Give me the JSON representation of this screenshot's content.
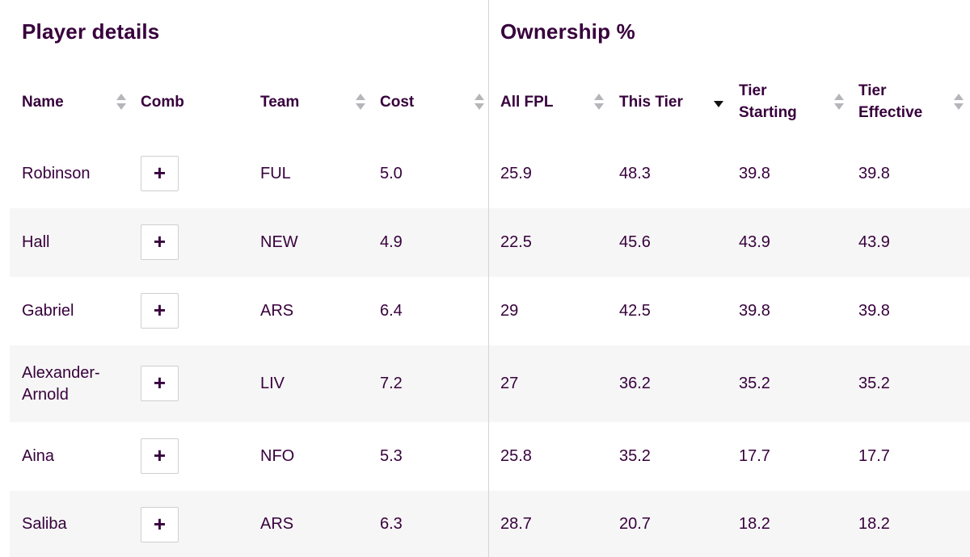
{
  "sections": {
    "player_details": "Player details",
    "ownership": "Ownership %"
  },
  "columns": {
    "name": "Name",
    "comb": "Comb",
    "team": "Team",
    "cost": "Cost",
    "all_fpl": "All FPL",
    "this_tier": "This Tier",
    "tier_starting": "Tier Starting",
    "tier_effective": "Tier Effective"
  },
  "sort_state": {
    "this_tier": "descending"
  },
  "comb_button_icon": "plus-icon",
  "comb_button_label": "+",
  "rows": [
    {
      "name": "Robinson",
      "team": "FUL",
      "cost": "5.0",
      "all_fpl": "25.9",
      "this_tier": "48.3",
      "tier_starting": "39.8",
      "tier_effective": "39.8"
    },
    {
      "name": "Hall",
      "team": "NEW",
      "cost": "4.9",
      "all_fpl": "22.5",
      "this_tier": "45.6",
      "tier_starting": "43.9",
      "tier_effective": "43.9"
    },
    {
      "name": "Gabriel",
      "team": "ARS",
      "cost": "6.4",
      "all_fpl": "29",
      "this_tier": "42.5",
      "tier_starting": "39.8",
      "tier_effective": "39.8"
    },
    {
      "name": "Alexander-Arnold",
      "team": "LIV",
      "cost": "7.2",
      "all_fpl": "27",
      "this_tier": "36.2",
      "tier_starting": "35.2",
      "tier_effective": "35.2"
    },
    {
      "name": "Aina",
      "team": "NFO",
      "cost": "5.3",
      "all_fpl": "25.8",
      "this_tier": "35.2",
      "tier_starting": "17.7",
      "tier_effective": "17.7"
    },
    {
      "name": "Saliba",
      "team": "ARS",
      "cost": "6.3",
      "all_fpl": "28.7",
      "this_tier": "20.7",
      "tier_starting": "18.2",
      "tier_effective": "18.2"
    }
  ],
  "colors": {
    "text": "#37003c",
    "row_alt": "#f6f6f6",
    "divider": "#d4d4d8",
    "sort_inactive": "#b5b5ba",
    "sort_active": "#111111"
  }
}
